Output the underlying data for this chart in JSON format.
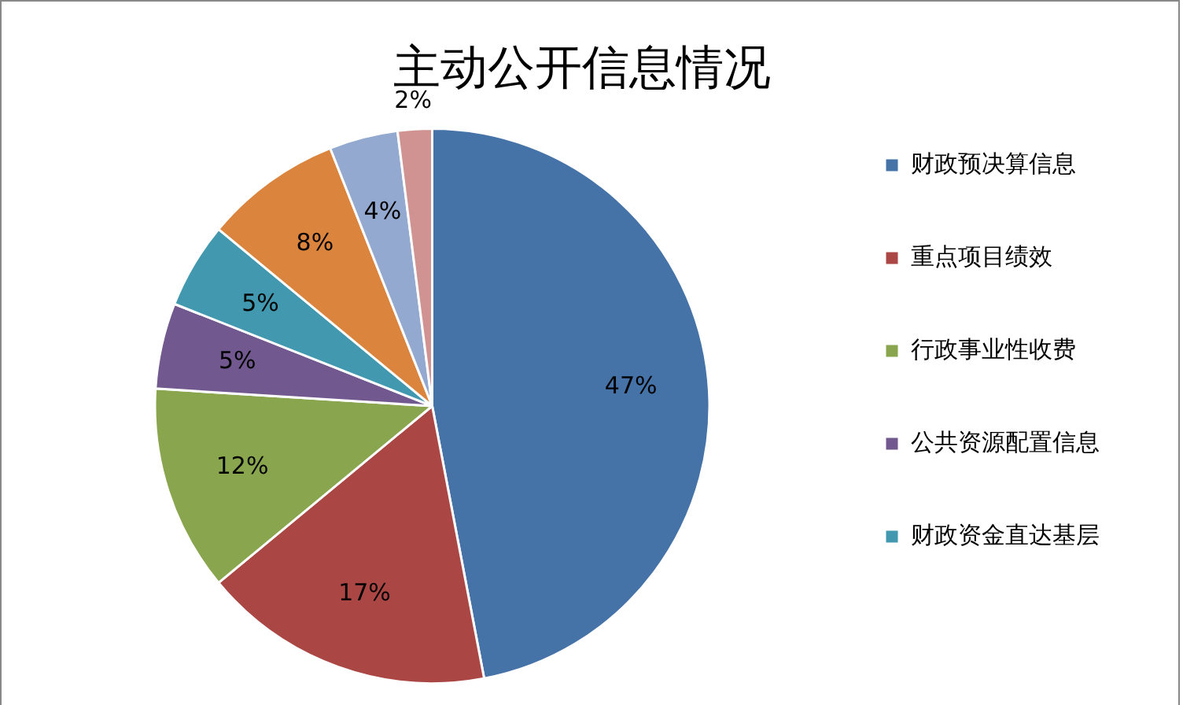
{
  "chart_data": {
    "type": "pie",
    "title": "主动公开信息情况",
    "categories": [
      "财政预决算信息",
      "重点项目绩效",
      "行政事业性收费",
      "公共资源配置信息",
      "财政资金直达基层",
      null,
      null,
      null
    ],
    "values": [
      47,
      17,
      12,
      5,
      5,
      8,
      4,
      2
    ],
    "colors": [
      "#4572a7",
      "#aa4643",
      "#89a54e",
      "#71588f",
      "#4198af",
      "#db843d",
      "#93a9cf",
      "#d19392"
    ],
    "value_labels": [
      "47%",
      "17%",
      "12%",
      "5%",
      "5%",
      "8%",
      "4%",
      "2%"
    ],
    "legend": "right"
  }
}
